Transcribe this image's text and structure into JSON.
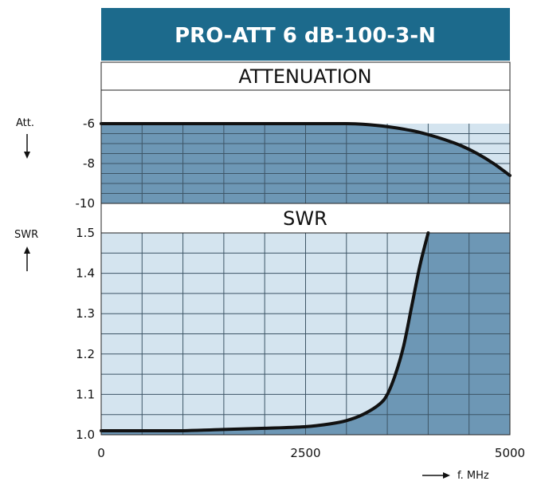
{
  "chart_data": [
    {
      "type": "line",
      "panel": "attenuation",
      "title": "PRO-ATT 6 dB-100-3-N",
      "section_label": "ATTENUATION",
      "ylabel": "Att.",
      "xlabel": "f. MHz",
      "xlim": [
        0,
        5000
      ],
      "ylim": [
        -10,
        -6
      ],
      "y_ticks": [
        "-6",
        "-8",
        "-10"
      ],
      "x_ticks": [
        "0",
        "2500",
        "5000"
      ],
      "grid": true,
      "series": [
        {
          "x": [
            0,
            500,
            1000,
            1500,
            2000,
            2500,
            3000,
            3200,
            3500,
            3800,
            4000,
            4200,
            4400,
            4600,
            4800,
            5000
          ],
          "y": [
            -6.0,
            -6.0,
            -6.0,
            -6.0,
            -6.0,
            -6.0,
            -6.0,
            -6.03,
            -6.15,
            -6.35,
            -6.55,
            -6.8,
            -7.1,
            -7.5,
            -8.0,
            -8.6
          ]
        }
      ]
    },
    {
      "type": "line",
      "panel": "swr",
      "section_label": "SWR",
      "ylabel": "SWR",
      "xlabel": "f. MHz",
      "xlim": [
        0,
        5000
      ],
      "ylim": [
        1.0,
        1.5
      ],
      "y_ticks": [
        "1.5",
        "1.4",
        "1.3",
        "1.2",
        "1.1",
        "1.0"
      ],
      "x_ticks": [
        "0",
        "2500",
        "5000"
      ],
      "grid": true,
      "series": [
        {
          "x": [
            0,
            500,
            1000,
            1500,
            2000,
            2500,
            2800,
            3000,
            3200,
            3400,
            3500,
            3600,
            3700,
            3800,
            3900,
            4000
          ],
          "y": [
            1.01,
            1.01,
            1.01,
            1.013,
            1.016,
            1.02,
            1.027,
            1.035,
            1.05,
            1.075,
            1.1,
            1.15,
            1.22,
            1.32,
            1.42,
            1.5
          ]
        }
      ]
    }
  ],
  "colors": {
    "title_bg": "#1c6a8c",
    "panel_dark": "#6d97b5",
    "panel_light": "#d4e4ef",
    "grid": "#3d5566",
    "curve": "#111111"
  },
  "icons": [
    "arrow-down-icon",
    "arrow-up-icon",
    "arrow-right-icon"
  ]
}
